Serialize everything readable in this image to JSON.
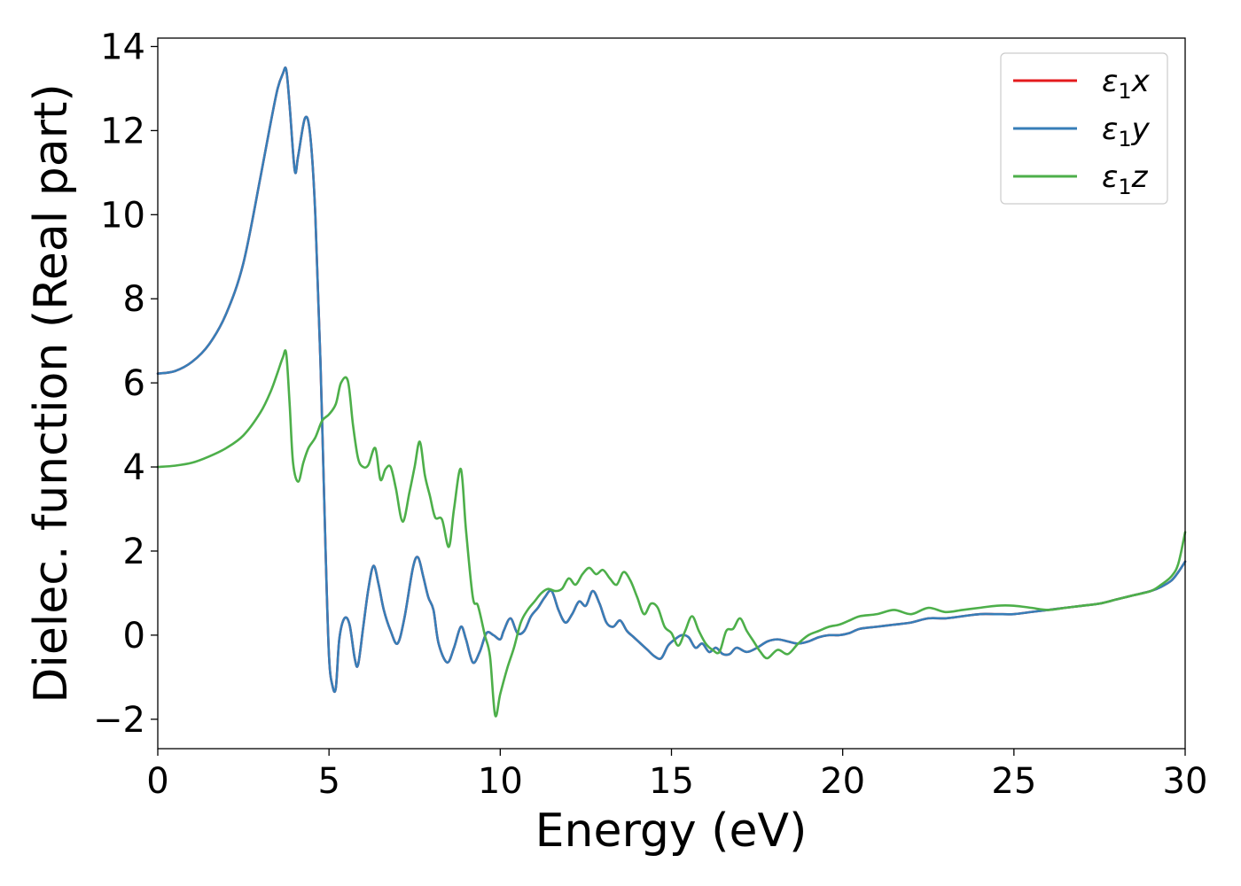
{
  "chart_data": {
    "type": "line",
    "xlabel": "Energy (eV)",
    "ylabel": "Dielec. function (Real part)",
    "xlim": [
      0,
      30
    ],
    "ylim": [
      -2.7,
      14.2
    ],
    "xticks": [
      0,
      5,
      10,
      15,
      20,
      25,
      30
    ],
    "xtick_labels": [
      "0",
      "5",
      "10",
      "15",
      "20",
      "25",
      "30"
    ],
    "yticks": [
      -2,
      0,
      2,
      4,
      6,
      8,
      10,
      12,
      14
    ],
    "ytick_labels": [
      "−2",
      "0",
      "2",
      "4",
      "6",
      "8",
      "10",
      "12",
      "14"
    ],
    "grid": false,
    "legend_position": "top-right",
    "series": [
      {
        "name": "ε1x",
        "legend_base": "ε",
        "legend_sub": "1",
        "legend_var": "x",
        "color": "#e41a1c",
        "x": [
          0,
          0.5,
          1,
          1.5,
          2,
          2.5,
          3,
          3.3,
          3.5,
          3.65,
          3.75,
          3.85,
          4.0,
          4.1,
          4.3,
          4.45,
          4.6,
          4.75,
          4.9,
          5.0,
          5.1,
          5.2,
          5.3,
          5.45,
          5.6,
          5.75,
          5.85,
          6.0,
          6.15,
          6.3,
          6.45,
          6.6,
          6.8,
          7.0,
          7.2,
          7.45,
          7.6,
          7.75,
          7.9,
          8.05,
          8.2,
          8.45,
          8.65,
          8.85,
          9.0,
          9.2,
          9.4,
          9.6,
          9.8,
          10.0,
          10.1,
          10.3,
          10.5,
          10.7,
          10.9,
          11.1,
          11.3,
          11.5,
          11.7,
          11.9,
          12.1,
          12.3,
          12.5,
          12.7,
          12.9,
          13.1,
          13.3,
          13.5,
          13.7,
          13.9,
          14.1,
          14.3,
          14.5,
          14.7,
          14.9,
          15.1,
          15.3,
          15.5,
          15.7,
          15.9,
          16.1,
          16.3,
          16.5,
          16.7,
          16.9,
          17.2,
          17.5,
          17.8,
          18.1,
          18.4,
          18.7,
          19.0,
          19.3,
          19.6,
          19.9,
          20.2,
          20.5,
          21.0,
          21.5,
          22.0,
          22.5,
          23.0,
          23.5,
          24.0,
          24.5,
          25.0,
          25.5,
          26.0,
          26.5,
          27.0,
          27.5,
          28.0,
          28.5,
          29.0,
          29.3,
          29.6,
          29.8,
          30.0
        ],
        "y": [
          6.22,
          6.28,
          6.5,
          6.92,
          7.65,
          8.85,
          10.9,
          12.2,
          13.0,
          13.35,
          13.45,
          12.6,
          11.05,
          11.4,
          12.3,
          11.9,
          10.0,
          6.5,
          2.0,
          -0.5,
          -1.2,
          -1.25,
          -0.1,
          0.4,
          0.25,
          -0.55,
          -0.7,
          0.2,
          1.1,
          1.65,
          1.2,
          0.6,
          0.1,
          -0.2,
          0.4,
          1.6,
          1.85,
          1.4,
          0.9,
          0.6,
          -0.2,
          -0.65,
          -0.3,
          0.2,
          -0.1,
          -0.65,
          -0.4,
          0.05,
          0.0,
          -0.1,
          0.1,
          0.4,
          0.05,
          0.1,
          0.45,
          0.65,
          0.9,
          1.05,
          0.6,
          0.3,
          0.5,
          0.8,
          0.7,
          1.05,
          0.75,
          0.3,
          0.2,
          0.35,
          0.1,
          -0.05,
          -0.2,
          -0.35,
          -0.5,
          -0.55,
          -0.25,
          -0.1,
          0.0,
          -0.05,
          -0.3,
          -0.2,
          -0.4,
          -0.3,
          -0.45,
          -0.45,
          -0.3,
          -0.4,
          -0.3,
          -0.15,
          -0.1,
          -0.15,
          -0.2,
          -0.15,
          -0.05,
          0.0,
          0.0,
          0.05,
          0.15,
          0.2,
          0.25,
          0.3,
          0.4,
          0.4,
          0.45,
          0.5,
          0.5,
          0.5,
          0.55,
          0.6,
          0.65,
          0.7,
          0.75,
          0.85,
          0.95,
          1.05,
          1.15,
          1.3,
          1.5,
          1.75
        ]
      },
      {
        "name": "ε1y",
        "legend_base": "ε",
        "legend_sub": "1",
        "legend_var": "y",
        "color": "#377eb8",
        "x": [
          0,
          0.5,
          1,
          1.5,
          2,
          2.5,
          3,
          3.3,
          3.5,
          3.65,
          3.75,
          3.85,
          4.0,
          4.1,
          4.3,
          4.45,
          4.6,
          4.75,
          4.9,
          5.0,
          5.1,
          5.2,
          5.3,
          5.45,
          5.6,
          5.75,
          5.85,
          6.0,
          6.15,
          6.3,
          6.45,
          6.6,
          6.8,
          7.0,
          7.2,
          7.45,
          7.6,
          7.75,
          7.9,
          8.05,
          8.2,
          8.45,
          8.65,
          8.85,
          9.0,
          9.2,
          9.4,
          9.6,
          9.8,
          10.0,
          10.1,
          10.3,
          10.5,
          10.7,
          10.9,
          11.1,
          11.3,
          11.5,
          11.7,
          11.9,
          12.1,
          12.3,
          12.5,
          12.7,
          12.9,
          13.1,
          13.3,
          13.5,
          13.7,
          13.9,
          14.1,
          14.3,
          14.5,
          14.7,
          14.9,
          15.1,
          15.3,
          15.5,
          15.7,
          15.9,
          16.1,
          16.3,
          16.5,
          16.7,
          16.9,
          17.2,
          17.5,
          17.8,
          18.1,
          18.4,
          18.7,
          19.0,
          19.3,
          19.6,
          19.9,
          20.2,
          20.5,
          21.0,
          21.5,
          22.0,
          22.5,
          23.0,
          23.5,
          24.0,
          24.5,
          25.0,
          25.5,
          26.0,
          26.5,
          27.0,
          27.5,
          28.0,
          28.5,
          29.0,
          29.3,
          29.6,
          29.8,
          30.0
        ],
        "y": [
          6.22,
          6.28,
          6.5,
          6.92,
          7.65,
          8.85,
          10.9,
          12.2,
          13.0,
          13.35,
          13.45,
          12.6,
          11.05,
          11.4,
          12.3,
          11.9,
          10.0,
          6.5,
          2.0,
          -0.5,
          -1.2,
          -1.25,
          -0.1,
          0.4,
          0.25,
          -0.55,
          -0.7,
          0.2,
          1.1,
          1.65,
          1.2,
          0.6,
          0.1,
          -0.2,
          0.4,
          1.6,
          1.85,
          1.4,
          0.9,
          0.6,
          -0.2,
          -0.65,
          -0.3,
          0.2,
          -0.1,
          -0.65,
          -0.4,
          0.05,
          0.0,
          -0.1,
          0.1,
          0.4,
          0.05,
          0.1,
          0.45,
          0.65,
          0.9,
          1.05,
          0.6,
          0.3,
          0.5,
          0.8,
          0.7,
          1.05,
          0.75,
          0.3,
          0.2,
          0.35,
          0.1,
          -0.05,
          -0.2,
          -0.35,
          -0.5,
          -0.55,
          -0.25,
          -0.1,
          0.0,
          -0.05,
          -0.3,
          -0.2,
          -0.4,
          -0.3,
          -0.45,
          -0.45,
          -0.3,
          -0.4,
          -0.3,
          -0.15,
          -0.1,
          -0.15,
          -0.2,
          -0.15,
          -0.05,
          0.0,
          0.0,
          0.05,
          0.15,
          0.2,
          0.25,
          0.3,
          0.4,
          0.4,
          0.45,
          0.5,
          0.5,
          0.5,
          0.55,
          0.6,
          0.65,
          0.7,
          0.75,
          0.85,
          0.95,
          1.05,
          1.15,
          1.3,
          1.5,
          1.75
        ]
      },
      {
        "name": "ε1z",
        "legend_base": "ε",
        "legend_sub": "1",
        "legend_var": "z",
        "color": "#4daf4a",
        "x": [
          0,
          0.5,
          1,
          1.5,
          2,
          2.5,
          3,
          3.3,
          3.5,
          3.65,
          3.75,
          3.85,
          3.95,
          4.1,
          4.25,
          4.4,
          4.6,
          4.8,
          5.0,
          5.2,
          5.35,
          5.55,
          5.7,
          5.85,
          6.0,
          6.15,
          6.35,
          6.5,
          6.65,
          6.8,
          6.95,
          7.15,
          7.35,
          7.5,
          7.65,
          7.8,
          7.95,
          8.1,
          8.3,
          8.5,
          8.65,
          8.85,
          9.0,
          9.2,
          9.35,
          9.55,
          9.7,
          9.85,
          10.0,
          10.2,
          10.4,
          10.6,
          10.8,
          11.0,
          11.2,
          11.4,
          11.6,
          11.8,
          12.0,
          12.2,
          12.4,
          12.6,
          12.8,
          13.0,
          13.2,
          13.4,
          13.6,
          13.8,
          14.0,
          14.2,
          14.4,
          14.6,
          14.8,
          15.0,
          15.2,
          15.4,
          15.6,
          15.8,
          16.0,
          16.2,
          16.4,
          16.6,
          16.8,
          17.0,
          17.2,
          17.4,
          17.6,
          17.8,
          18.1,
          18.4,
          18.7,
          19.0,
          19.3,
          19.6,
          19.9,
          20.2,
          20.5,
          21.0,
          21.5,
          22.0,
          22.5,
          23.0,
          23.5,
          24.0,
          24.5,
          25.0,
          25.5,
          26.0,
          26.5,
          27.0,
          27.5,
          28.0,
          28.5,
          29.0,
          29.3,
          29.6,
          29.8,
          30.0
        ],
        "y": [
          4.0,
          4.03,
          4.1,
          4.25,
          4.45,
          4.75,
          5.3,
          5.8,
          6.25,
          6.6,
          6.7,
          5.5,
          4.1,
          3.65,
          4.1,
          4.45,
          4.7,
          5.1,
          5.25,
          5.5,
          6.0,
          6.05,
          5.0,
          4.2,
          4.0,
          4.05,
          4.45,
          3.7,
          3.95,
          4.0,
          3.5,
          2.7,
          3.4,
          4.0,
          4.6,
          3.8,
          3.3,
          2.8,
          2.75,
          2.1,
          3.0,
          3.95,
          2.5,
          0.9,
          0.7,
          0.0,
          -0.5,
          -1.9,
          -1.4,
          -0.8,
          -0.3,
          0.3,
          0.6,
          0.8,
          1.0,
          1.1,
          1.05,
          1.1,
          1.35,
          1.2,
          1.45,
          1.6,
          1.45,
          1.55,
          1.35,
          1.2,
          1.5,
          1.3,
          0.9,
          0.5,
          0.75,
          0.65,
          0.2,
          0.05,
          -0.25,
          0.1,
          0.45,
          0.1,
          -0.2,
          -0.35,
          -0.4,
          0.1,
          0.15,
          0.4,
          0.1,
          -0.15,
          -0.4,
          -0.55,
          -0.35,
          -0.45,
          -0.2,
          0.0,
          0.1,
          0.2,
          0.25,
          0.35,
          0.45,
          0.5,
          0.6,
          0.5,
          0.65,
          0.55,
          0.6,
          0.65,
          0.7,
          0.7,
          0.65,
          0.6,
          0.65,
          0.7,
          0.75,
          0.85,
          0.95,
          1.05,
          1.2,
          1.4,
          1.7,
          2.45
        ]
      }
    ]
  }
}
